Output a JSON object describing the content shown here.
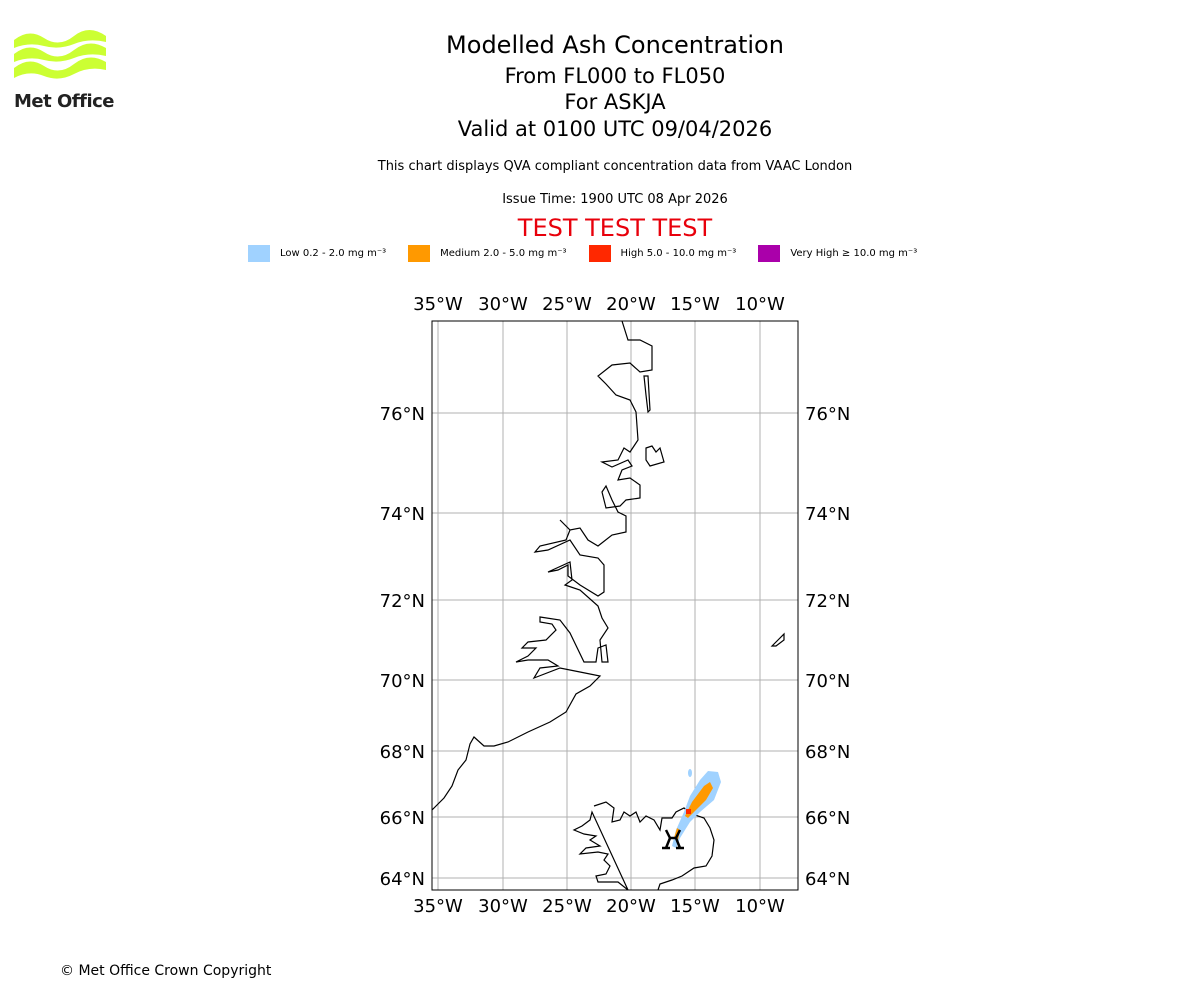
{
  "logo": {
    "text": "Met Office",
    "color": "#ccff33"
  },
  "header": {
    "title": "Modelled Ash Concentration",
    "levels": "From FL000 to FL050",
    "volcano": "For ASKJA",
    "valid": "Valid at 0100 UTC 09/04/2026",
    "description": "This chart displays QVA compliant concentration data from VAAC London",
    "issue_time": "Issue Time: 1900 UTC 08 Apr 2026",
    "test_banner": "TEST TEST TEST"
  },
  "legend": [
    {
      "label": "Low 0.2 - 2.0 mg m⁻³",
      "color": "#a0d2ff"
    },
    {
      "label": "Medium 2.0 - 5.0 mg m⁻³",
      "color": "#ff9900"
    },
    {
      "label": "High 5.0 - 10.0 mg m⁻³",
      "color": "#ff2800"
    },
    {
      "label": "Very High ≥ 10.0 mg m⁻³",
      "color": "#aa00aa"
    }
  ],
  "chart_data": {
    "type": "map",
    "lon_ticks": [
      "35°W",
      "30°W",
      "25°W",
      "20°W",
      "15°W",
      "10°W"
    ],
    "lat_ticks": [
      "76°N",
      "74°N",
      "72°N",
      "70°N",
      "68°N",
      "66°N",
      "64°N"
    ],
    "grid": true,
    "volcano_location": {
      "name": "ASKJA",
      "lat": 65.05,
      "lon": -16.75
    }
  },
  "footer": {
    "copyright": "© Met Office Crown Copyright"
  }
}
